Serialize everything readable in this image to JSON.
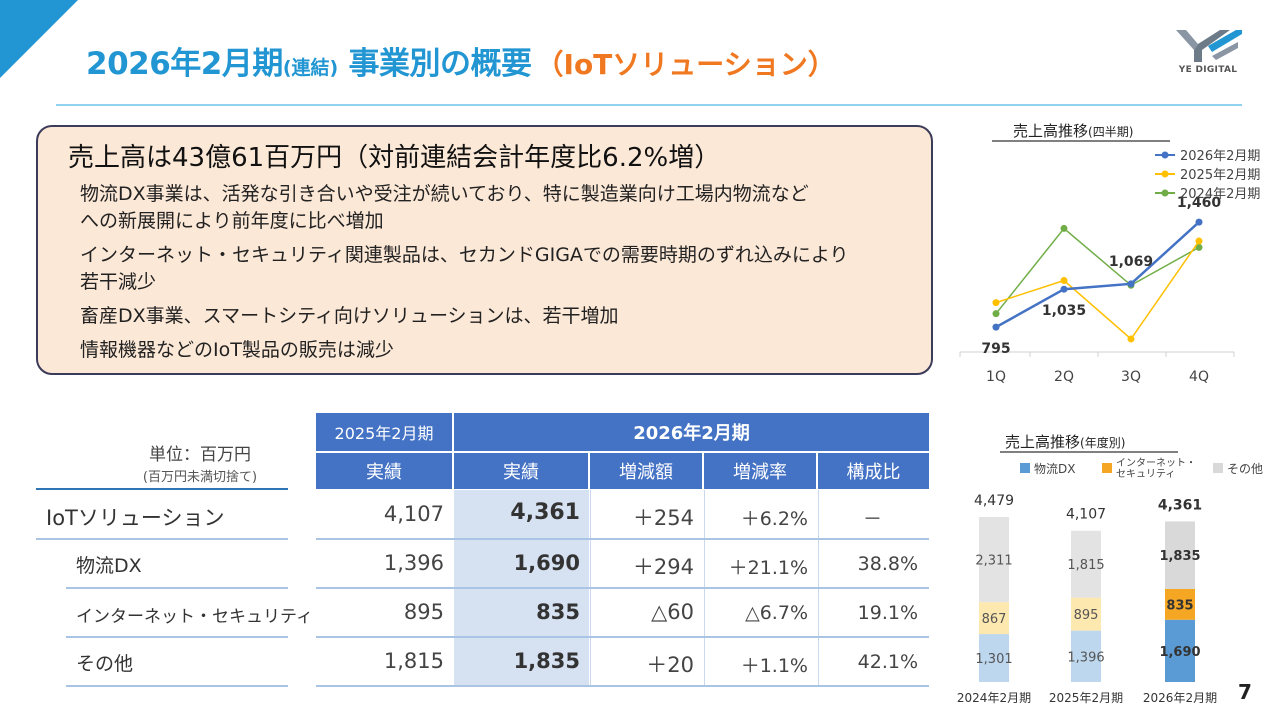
{
  "header": {
    "title_main": "2026年2月期",
    "title_paren": "(連結)",
    "title_rest": " 事業別の概要",
    "title_segment": "（IoTソリューション）",
    "logo_text": "YE DIGITAL",
    "page_number": "7"
  },
  "summary": {
    "headline": "売上高は43億61百万円（対前連結会計年度比6.2%増）",
    "bullets": [
      "物流DX事業は、活発な引き合いや受注が続いており、特に製造業向け工場内物流など",
      "への新展開により前年度に比べ増加",
      "インターネット・セキュリティ関連製品は、セカンドGIGAでの需要時期のずれ込みにより",
      "若干減少",
      "畜産DX事業、スマートシティ向けソリューションは、若干増加",
      "情報機器などのIoT製品の販売は減少"
    ]
  },
  "table": {
    "unit": "単位：百万円",
    "unit_note": "(百万円未満切捨て)",
    "prev_period": "2025年2月期",
    "cur_period": "2026年2月期",
    "col_prev_actual": "実績",
    "col_cur_actual": "実績",
    "col_change": "増減額",
    "col_rate": "増減率",
    "col_share": "構成比",
    "rows": [
      {
        "label": "IoTソリューション",
        "prev": "4,107",
        "cur": "4,361",
        "change": "＋254",
        "rate": "＋6.2%",
        "share": "－"
      },
      {
        "label": "物流DX",
        "prev": "1,396",
        "cur": "1,690",
        "change": "＋294",
        "rate": "＋21.1%",
        "share": "38.8%"
      },
      {
        "label": "インターネット・セキュリティ",
        "prev": "895",
        "cur": "835",
        "change": "△60",
        "rate": "△6.7%",
        "share": "19.1%"
      },
      {
        "label": "その他",
        "prev": "1,815",
        "cur": "1,835",
        "change": "＋20",
        "rate": "＋1.1%",
        "share": "42.1%"
      }
    ]
  },
  "chart_data": [
    {
      "type": "line",
      "title": "売上高推移",
      "subtitle": "(四半期)",
      "categories": [
        "1Q",
        "2Q",
        "3Q",
        "4Q"
      ],
      "legend_position": "top-right",
      "series": [
        {
          "name": "2026年2月期",
          "color": "#4472c4",
          "values": [
            795,
            1035,
            1069,
            1460
          ],
          "labels": [
            "795",
            "1,035",
            "1,069",
            "1,460"
          ]
        },
        {
          "name": "2025年2月期",
          "color": "#ffc000",
          "values": [
            950,
            1090,
            720,
            1340
          ]
        },
        {
          "name": "2024年2月期",
          "color": "#70ad47",
          "values": [
            880,
            1420,
            1060,
            1300
          ]
        }
      ],
      "ylim": [
        650,
        1600
      ]
    },
    {
      "type": "bar",
      "stacked": true,
      "title": "売上高推移",
      "subtitle": "(年度別)",
      "categories": [
        "2024年2月期",
        "2025年2月期",
        "2026年2月期"
      ],
      "totals": [
        "4,479",
        "4,107",
        "4,361"
      ],
      "legend_position": "top",
      "series": [
        {
          "name": "物流DX",
          "values": [
            1301,
            1396,
            1690
          ],
          "labels": [
            "1,301",
            "1,396",
            "1,690"
          ],
          "colors": [
            "#bdd7ee",
            "#bdd7ee",
            "#5b9bd5"
          ],
          "legend_color": "#5b9bd5"
        },
        {
          "name": "インターネット・\nセキュリティ",
          "values": [
            867,
            895,
            835
          ],
          "labels": [
            "867",
            "895",
            "835"
          ],
          "colors": [
            "#fde9b0",
            "#fde9b0",
            "#f5a623"
          ],
          "legend_color": "#f5a623"
        },
        {
          "name": "その他",
          "values": [
            2311,
            1815,
            1835
          ],
          "labels": [
            "2,311",
            "1,815",
            "1,835"
          ],
          "colors": [
            "#e3e3e3",
            "#e3e3e3",
            "#d9d9d9"
          ],
          "legend_color": "#d9d9d9"
        }
      ],
      "ylim": [
        0,
        4600
      ]
    }
  ]
}
